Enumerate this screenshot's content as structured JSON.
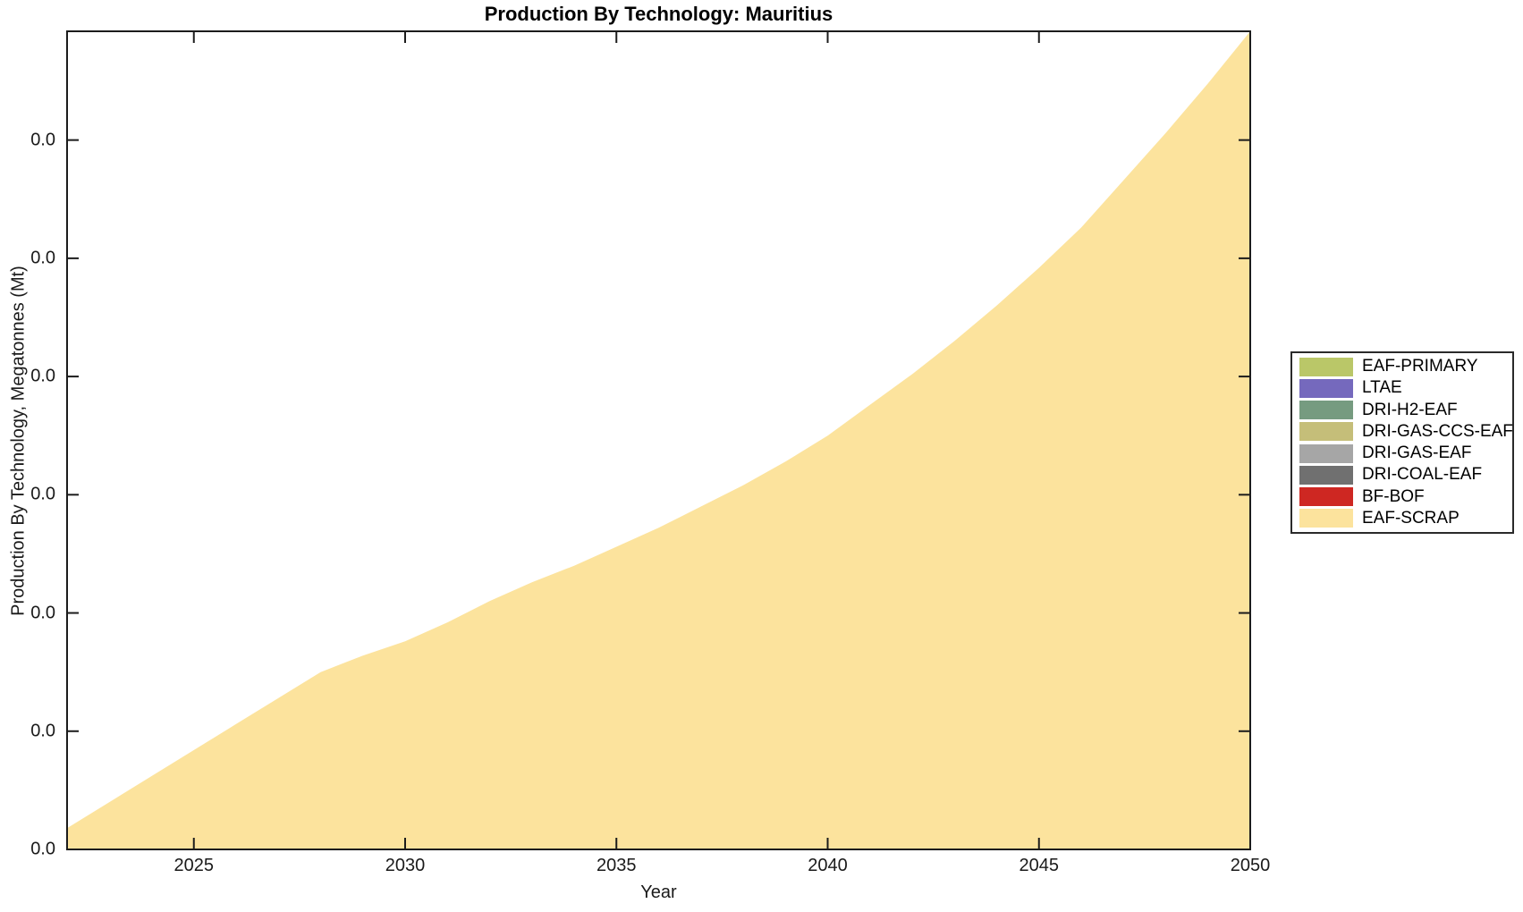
{
  "page": {
    "background": "#ffffff"
  },
  "chart": {
    "title": "Production By Technology: Mauritius",
    "axes": {
      "xlabel": "Year",
      "ylabel": "Production By Technology, Megatonnes (Mt)",
      "x_tick_labels": [
        "2025",
        "2030",
        "2035",
        "2040",
        "2045",
        "2050"
      ],
      "y_tick_labels": [
        "0.0",
        "0.0",
        "0.0",
        "0.0",
        "0.0",
        "0.0",
        "0.0"
      ],
      "xlim": [
        2022,
        2050
      ],
      "ylim": [
        0,
        0.0346
      ],
      "y_tick_step": 0.005,
      "grid": false
    },
    "legend": {
      "position": "outside-right",
      "items": [
        {
          "label": "EAF-PRIMARY",
          "color": "#bac768"
        },
        {
          "label": "LTAE",
          "color": "#7569bd"
        },
        {
          "label": "DRI-H2-EAF",
          "color": "#769b80"
        },
        {
          "label": "DRI-GAS-CCS-EAF",
          "color": "#c5be79"
        },
        {
          "label": "DRI-GAS-EAF",
          "color": "#a6a6a6"
        },
        {
          "label": "DRI-COAL-EAF",
          "color": "#707070"
        },
        {
          "label": "BF-BOF",
          "color": "#ce2722"
        },
        {
          "label": "EAF-SCRAP",
          "color": "#fce39d"
        }
      ]
    },
    "frame_color": "#1c1c1c"
  },
  "chart_data": {
    "type": "area",
    "stacked": true,
    "title": "Production By Technology: Mauritius",
    "xlabel": "Year",
    "ylabel": "Production By Technology, Megatonnes (Mt)",
    "x": [
      2022,
      2023,
      2024,
      2025,
      2026,
      2027,
      2028,
      2029,
      2030,
      2031,
      2032,
      2033,
      2034,
      2035,
      2036,
      2037,
      2038,
      2039,
      2040,
      2041,
      2042,
      2043,
      2044,
      2045,
      2046,
      2047,
      2048,
      2049,
      2050
    ],
    "xlim": [
      2022,
      2050
    ],
    "ylim": [
      0,
      0.0346
    ],
    "y_tick_values": [
      0,
      0.005,
      0.01,
      0.015,
      0.02,
      0.025,
      0.03
    ],
    "y_tick_display": "0.0",
    "legend_position": "outside-right",
    "grid": false,
    "series": [
      {
        "name": "EAF-PRIMARY",
        "color": "#bac768",
        "values": [
          0,
          0,
          0,
          0,
          0,
          0,
          0,
          0,
          0,
          0,
          0,
          0,
          0,
          0,
          0,
          0,
          0,
          0,
          0,
          0,
          0,
          0,
          0,
          0,
          0,
          0,
          0,
          0,
          0
        ]
      },
      {
        "name": "LTAE",
        "color": "#7569bd",
        "values": [
          0,
          0,
          0,
          0,
          0,
          0,
          0,
          0,
          0,
          0,
          0,
          0,
          0,
          0,
          0,
          0,
          0,
          0,
          0,
          0,
          0,
          0,
          0,
          0,
          0,
          0,
          0,
          0,
          0
        ]
      },
      {
        "name": "DRI-H2-EAF",
        "color": "#769b80",
        "values": [
          0,
          0,
          0,
          0,
          0,
          0,
          0,
          0,
          0,
          0,
          0,
          0,
          0,
          0,
          0,
          0,
          0,
          0,
          0,
          0,
          0,
          0,
          0,
          0,
          0,
          0,
          0,
          0,
          0
        ]
      },
      {
        "name": "DRI-GAS-CCS-EAF",
        "color": "#c5be79",
        "values": [
          0,
          0,
          0,
          0,
          0,
          0,
          0,
          0,
          0,
          0,
          0,
          0,
          0,
          0,
          0,
          0,
          0,
          0,
          0,
          0,
          0,
          0,
          0,
          0,
          0,
          0,
          0,
          0,
          0
        ]
      },
      {
        "name": "DRI-GAS-EAF",
        "color": "#a6a6a6",
        "values": [
          0,
          0,
          0,
          0,
          0,
          0,
          0,
          0,
          0,
          0,
          0,
          0,
          0,
          0,
          0,
          0,
          0,
          0,
          0,
          0,
          0,
          0,
          0,
          0,
          0,
          0,
          0,
          0,
          0
        ]
      },
      {
        "name": "DRI-COAL-EAF",
        "color": "#707070",
        "values": [
          0,
          0,
          0,
          0,
          0,
          0,
          0,
          0,
          0,
          0,
          0,
          0,
          0,
          0,
          0,
          0,
          0,
          0,
          0,
          0,
          0,
          0,
          0,
          0,
          0,
          0,
          0,
          0,
          0
        ]
      },
      {
        "name": "BF-BOF",
        "color": "#ce2722",
        "values": [
          0,
          0,
          0,
          0,
          0,
          0,
          0,
          0,
          0,
          0,
          0,
          0,
          0,
          0,
          0,
          0,
          0,
          0,
          0,
          0,
          0,
          0,
          0,
          0,
          0,
          0,
          0,
          0,
          0
        ]
      },
      {
        "name": "EAF-SCRAP",
        "color": "#fce39d",
        "values": [
          0.0009,
          0.002,
          0.0031,
          0.0042,
          0.0053,
          0.0064,
          0.0075,
          0.0082,
          0.0088,
          0.0096,
          0.0105,
          0.0113,
          0.012,
          0.0128,
          0.0136,
          0.0145,
          0.0154,
          0.0164,
          0.0175,
          0.0188,
          0.0201,
          0.0215,
          0.023,
          0.0246,
          0.0263,
          0.0283,
          0.0303,
          0.0324,
          0.0346
        ]
      }
    ],
    "note": "Y-axis tick labels all render as 0.0 (one-decimal rounding); EAF-SCRAP is the only series with visible area. Values in Mt estimated from pixel positions at 0.005 Mt per tick."
  }
}
